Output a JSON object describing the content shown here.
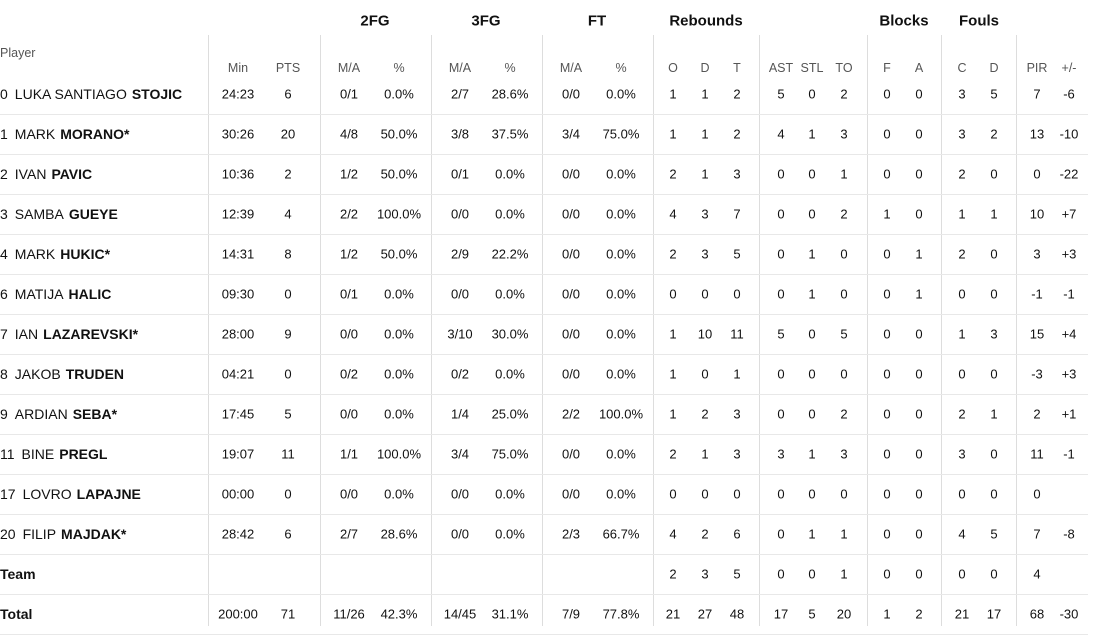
{
  "group_headers": [
    "2FG",
    "3FG",
    "FT",
    "Rebounds",
    "Blocks",
    "Fouls"
  ],
  "player_header": "Player",
  "column_headers": [
    "Min",
    "PTS",
    "M/A",
    "%",
    "M/A",
    "%",
    "M/A",
    "%",
    "O",
    "D",
    "T",
    "AST",
    "STL",
    "TO",
    "F",
    "A",
    "C",
    "D",
    "PIR",
    "+/-"
  ],
  "players": [
    {
      "number": "0",
      "first": "LUKA SANTIAGO",
      "last": "STOJIC",
      "stats": [
        "24:23",
        "6",
        "0/1",
        "0.0%",
        "2/7",
        "28.6%",
        "0/0",
        "0.0%",
        "1",
        "1",
        "2",
        "5",
        "0",
        "2",
        "0",
        "0",
        "3",
        "5",
        "7",
        "-6"
      ]
    },
    {
      "number": "1",
      "first": "MARK",
      "last": "MORANO*",
      "stats": [
        "30:26",
        "20",
        "4/8",
        "50.0%",
        "3/8",
        "37.5%",
        "3/4",
        "75.0%",
        "1",
        "1",
        "2",
        "4",
        "1",
        "3",
        "0",
        "0",
        "3",
        "2",
        "13",
        "-10"
      ]
    },
    {
      "number": "2",
      "first": "IVAN",
      "last": "PAVIC",
      "stats": [
        "10:36",
        "2",
        "1/2",
        "50.0%",
        "0/1",
        "0.0%",
        "0/0",
        "0.0%",
        "2",
        "1",
        "3",
        "0",
        "0",
        "1",
        "0",
        "0",
        "2",
        "0",
        "0",
        "-22"
      ]
    },
    {
      "number": "3",
      "first": "SAMBA",
      "last": "GUEYE",
      "stats": [
        "12:39",
        "4",
        "2/2",
        "100.0%",
        "0/0",
        "0.0%",
        "0/0",
        "0.0%",
        "4",
        "3",
        "7",
        "0",
        "0",
        "2",
        "1",
        "0",
        "1",
        "1",
        "10",
        "+7"
      ]
    },
    {
      "number": "4",
      "first": "MARK",
      "last": "HUKIC*",
      "stats": [
        "14:31",
        "8",
        "1/2",
        "50.0%",
        "2/9",
        "22.2%",
        "0/0",
        "0.0%",
        "2",
        "3",
        "5",
        "0",
        "1",
        "0",
        "0",
        "1",
        "2",
        "0",
        "3",
        "+3"
      ]
    },
    {
      "number": "6",
      "first": "MATIJA",
      "last": "HALIC",
      "stats": [
        "09:30",
        "0",
        "0/1",
        "0.0%",
        "0/0",
        "0.0%",
        "0/0",
        "0.0%",
        "0",
        "0",
        "0",
        "0",
        "1",
        "0",
        "0",
        "1",
        "0",
        "0",
        "-1",
        "-1"
      ]
    },
    {
      "number": "7",
      "first": "IAN",
      "last": "LAZAREVSKI*",
      "stats": [
        "28:00",
        "9",
        "0/0",
        "0.0%",
        "3/10",
        "30.0%",
        "0/0",
        "0.0%",
        "1",
        "10",
        "11",
        "5",
        "0",
        "5",
        "0",
        "0",
        "1",
        "3",
        "15",
        "+4"
      ]
    },
    {
      "number": "8",
      "first": "JAKOB",
      "last": "TRUDEN",
      "stats": [
        "04:21",
        "0",
        "0/2",
        "0.0%",
        "0/2",
        "0.0%",
        "0/0",
        "0.0%",
        "1",
        "0",
        "1",
        "0",
        "0",
        "0",
        "0",
        "0",
        "0",
        "0",
        "-3",
        "+3"
      ]
    },
    {
      "number": "9",
      "first": "ARDIAN",
      "last": "SEBA*",
      "stats": [
        "17:45",
        "5",
        "0/0",
        "0.0%",
        "1/4",
        "25.0%",
        "2/2",
        "100.0%",
        "1",
        "2",
        "3",
        "0",
        "0",
        "2",
        "0",
        "0",
        "2",
        "1",
        "2",
        "+1"
      ]
    },
    {
      "number": "11",
      "first": "BINE",
      "last": "PREGL",
      "stats": [
        "19:07",
        "11",
        "1/1",
        "100.0%",
        "3/4",
        "75.0%",
        "0/0",
        "0.0%",
        "2",
        "1",
        "3",
        "3",
        "1",
        "3",
        "0",
        "0",
        "3",
        "0",
        "11",
        "-1"
      ]
    },
    {
      "number": "17",
      "first": "LOVRO",
      "last": "LAPAJNE",
      "stats": [
        "00:00",
        "0",
        "0/0",
        "0.0%",
        "0/0",
        "0.0%",
        "0/0",
        "0.0%",
        "0",
        "0",
        "0",
        "0",
        "0",
        "0",
        "0",
        "0",
        "0",
        "0",
        "0",
        null
      ]
    },
    {
      "number": "20",
      "first": "FILIP",
      "last": "MAJDAK*",
      "stats": [
        "28:42",
        "6",
        "2/7",
        "28.6%",
        "0/0",
        "0.0%",
        "2/3",
        "66.7%",
        "4",
        "2",
        "6",
        "0",
        "1",
        "1",
        "0",
        "0",
        "4",
        "5",
        "7",
        "-8"
      ]
    }
  ],
  "team": {
    "name": "Team",
    "stats": [
      null,
      null,
      null,
      null,
      null,
      null,
      null,
      null,
      "2",
      "3",
      "5",
      "0",
      "0",
      "1",
      "0",
      "0",
      "0",
      "0",
      "4",
      null
    ]
  },
  "total": {
    "name": "Total",
    "stats": [
      "200:00",
      "71",
      "11/26",
      "42.3%",
      "14/45",
      "31.1%",
      "7/9",
      "77.8%",
      "21",
      "27",
      "48",
      "17",
      "5",
      "20",
      "1",
      "2",
      "21",
      "17",
      "68",
      "-30"
    ]
  }
}
